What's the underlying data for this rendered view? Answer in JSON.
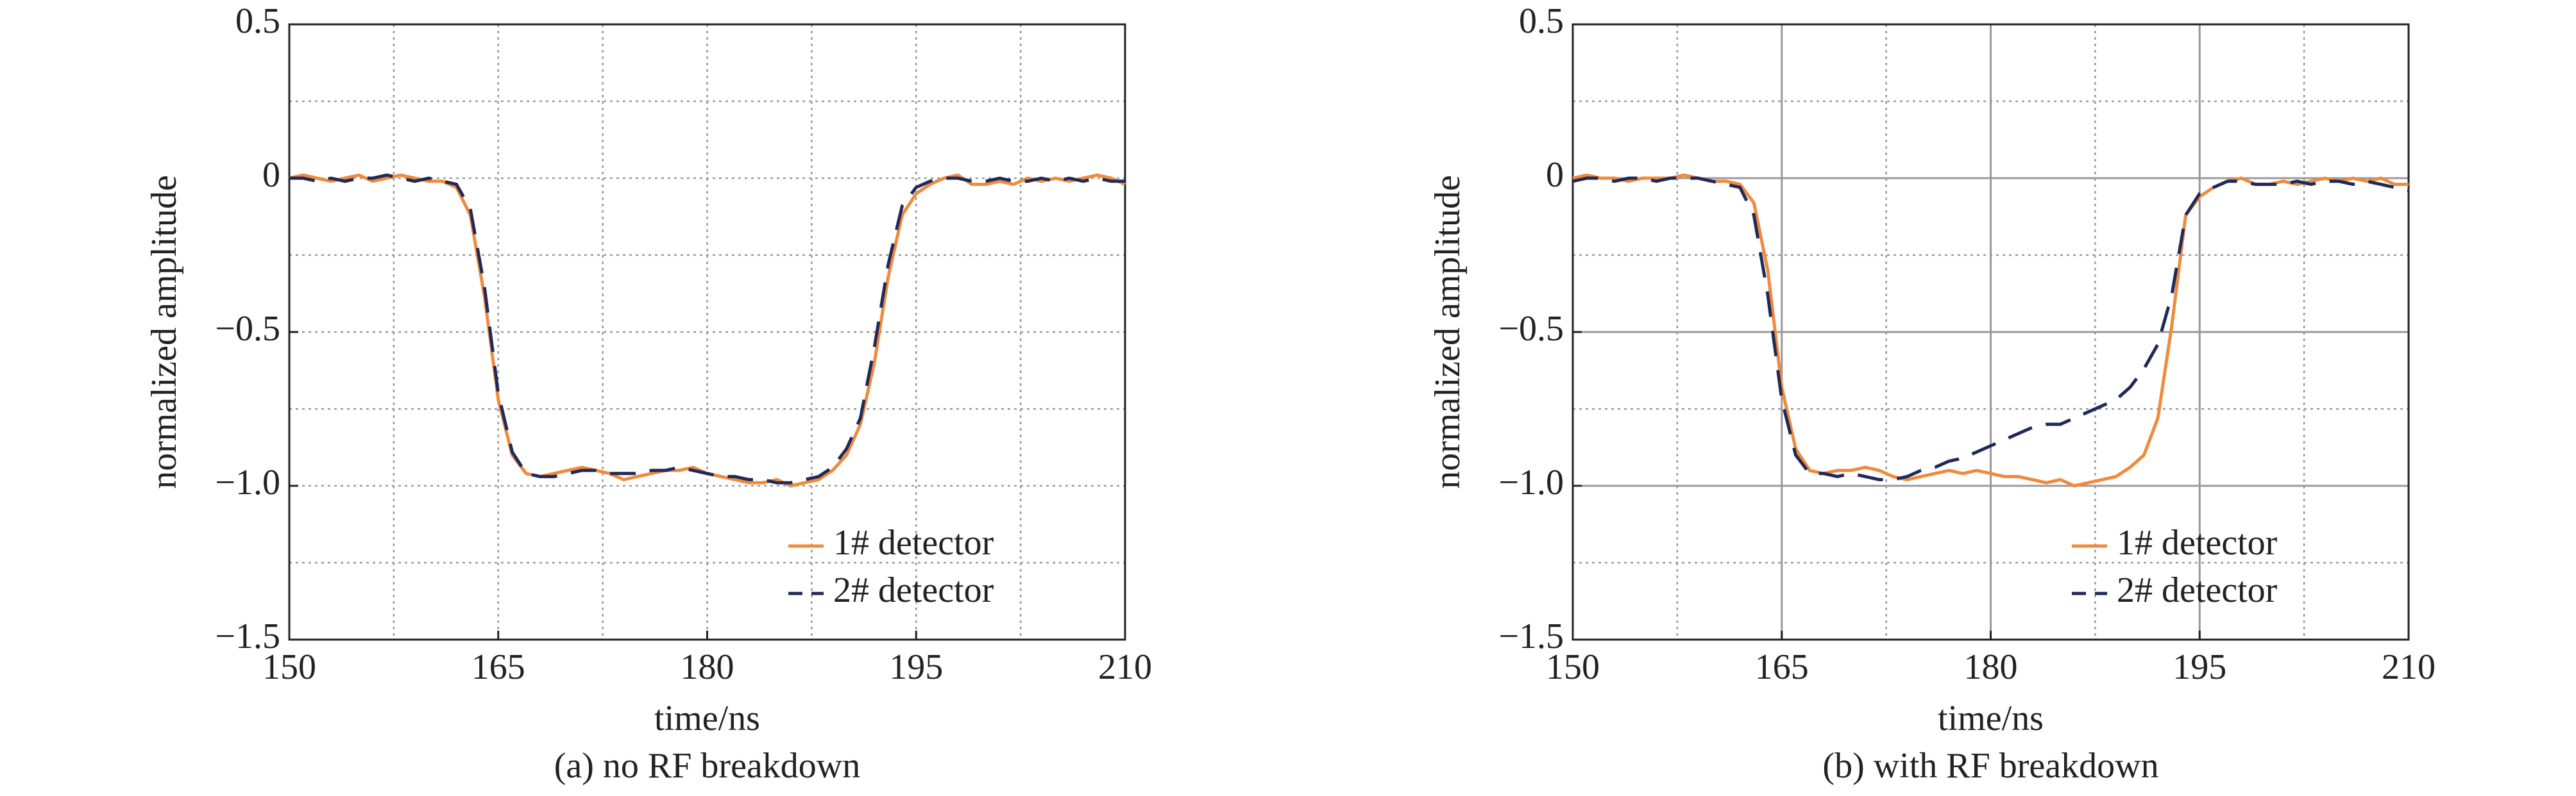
{
  "chart_data": [
    {
      "type": "line",
      "caption": "(a) no RF breakdown",
      "x_label": "time/ns",
      "y_label": "normalized amplitude",
      "x": [
        150,
        151,
        152,
        153,
        154,
        155,
        156,
        157,
        158,
        159,
        160,
        161,
        162,
        163,
        164,
        165,
        166,
        167,
        168,
        169,
        170,
        171,
        172,
        173,
        174,
        175,
        176,
        177,
        178,
        179,
        180,
        181,
        182,
        183,
        184,
        185,
        186,
        187,
        188,
        189,
        190,
        191,
        192,
        193,
        194,
        195,
        196,
        197,
        198,
        199,
        200,
        201,
        202,
        203,
        204,
        205,
        206,
        207,
        208,
        209,
        210
      ],
      "series": [
        {
          "name": "1# detector",
          "color": "#f08a3c",
          "style": "solid",
          "values": [
            0,
            0.01,
            0,
            -0.01,
            0,
            0.01,
            -0.01,
            0,
            0.01,
            0,
            -0.01,
            -0.01,
            -0.03,
            -0.12,
            -0.38,
            -0.72,
            -0.9,
            -0.96,
            -0.97,
            -0.96,
            -0.95,
            -0.94,
            -0.95,
            -0.96,
            -0.98,
            -0.97,
            -0.96,
            -0.95,
            -0.95,
            -0.94,
            -0.96,
            -0.97,
            -0.98,
            -0.99,
            -0.99,
            -0.98,
            -1.0,
            -0.99,
            -0.98,
            -0.95,
            -0.9,
            -0.8,
            -0.6,
            -0.32,
            -0.12,
            -0.05,
            -0.02,
            0,
            0.01,
            -0.02,
            -0.02,
            -0.01,
            -0.02,
            0,
            -0.01,
            0,
            -0.01,
            0,
            0.01,
            0,
            -0.02
          ]
        },
        {
          "name": "2# detector",
          "color": "#1f2a5a",
          "style": "dashed",
          "values": [
            0,
            0,
            -0.01,
            0,
            -0.01,
            0,
            0,
            0.01,
            0,
            -0.01,
            0,
            -0.01,
            -0.02,
            -0.1,
            -0.35,
            -0.7,
            -0.89,
            -0.96,
            -0.97,
            -0.97,
            -0.96,
            -0.95,
            -0.95,
            -0.96,
            -0.96,
            -0.96,
            -0.95,
            -0.95,
            -0.94,
            -0.95,
            -0.96,
            -0.97,
            -0.97,
            -0.98,
            -0.98,
            -0.99,
            -0.99,
            -0.98,
            -0.97,
            -0.94,
            -0.88,
            -0.78,
            -0.55,
            -0.28,
            -0.09,
            -0.03,
            -0.01,
            0,
            0,
            -0.01,
            -0.01,
            0,
            -0.01,
            -0.01,
            0,
            -0.01,
            0,
            -0.01,
            0,
            -0.01,
            -0.01
          ]
        }
      ],
      "xlim": [
        150,
        210
      ],
      "xticks": [
        150,
        165,
        180,
        195,
        210
      ],
      "xminor": [
        157.5,
        172.5,
        187.5,
        202.5
      ],
      "ylim": [
        -1.5,
        0.5
      ],
      "yticks": [
        {
          "value": -1.5,
          "label": "−1.5"
        },
        {
          "value": -1,
          "label": "−1.0"
        },
        {
          "value": -0.5,
          "label": "−0.5"
        },
        0,
        0.5
      ],
      "yminor": [
        -1.25,
        -0.75,
        -0.25,
        0.25
      ],
      "grid": "dotted",
      "legend": "lower right"
    },
    {
      "type": "line",
      "caption": "(b) with RF breakdown",
      "x_label": "time/ns",
      "y_label": "normalized amplitude",
      "x": [
        150,
        151,
        152,
        153,
        154,
        155,
        156,
        157,
        158,
        159,
        160,
        161,
        162,
        163,
        164,
        165,
        166,
        167,
        168,
        169,
        170,
        171,
        172,
        173,
        174,
        175,
        176,
        177,
        178,
        179,
        180,
        181,
        182,
        183,
        184,
        185,
        186,
        187,
        188,
        189,
        190,
        191,
        192,
        193,
        194,
        195,
        196,
        197,
        198,
        199,
        200,
        201,
        202,
        203,
        204,
        205,
        206,
        207,
        208,
        209,
        210
      ],
      "series": [
        {
          "name": "1# detector",
          "color": "#f08a3c",
          "style": "solid",
          "values": [
            0,
            0.01,
            0,
            0,
            -0.01,
            0,
            0,
            0,
            0.01,
            0,
            -0.01,
            -0.01,
            -0.02,
            -0.08,
            -0.3,
            -0.68,
            -0.88,
            -0.95,
            -0.96,
            -0.95,
            -0.95,
            -0.94,
            -0.95,
            -0.97,
            -0.98,
            -0.97,
            -0.96,
            -0.95,
            -0.96,
            -0.95,
            -0.96,
            -0.97,
            -0.97,
            -0.98,
            -0.99,
            -0.98,
            -1.0,
            -0.99,
            -0.98,
            -0.97,
            -0.94,
            -0.9,
            -0.78,
            -0.48,
            -0.12,
            -0.06,
            -0.03,
            -0.01,
            0,
            -0.02,
            -0.02,
            -0.01,
            -0.02,
            -0.01,
            0,
            -0.01,
            0,
            -0.01,
            0,
            -0.02,
            -0.02
          ]
        },
        {
          "name": "2# detector",
          "color": "#1f2a5a",
          "style": "dashed",
          "values": [
            -0.01,
            0,
            0,
            -0.01,
            0,
            0,
            -0.01,
            0,
            0,
            0,
            -0.01,
            -0.02,
            -0.03,
            -0.12,
            -0.38,
            -0.72,
            -0.9,
            -0.96,
            -0.96,
            -0.97,
            -0.96,
            -0.97,
            -0.98,
            -0.98,
            -0.97,
            -0.95,
            -0.94,
            -0.92,
            -0.91,
            -0.89,
            -0.87,
            -0.85,
            -0.83,
            -0.81,
            -0.8,
            -0.8,
            -0.78,
            -0.76,
            -0.74,
            -0.72,
            -0.68,
            -0.62,
            -0.54,
            -0.38,
            -0.12,
            -0.05,
            -0.03,
            -0.01,
            -0.01,
            -0.02,
            -0.02,
            -0.02,
            -0.01,
            -0.02,
            -0.01,
            -0.01,
            -0.02,
            -0.01,
            -0.02,
            -0.03,
            -0.04
          ]
        }
      ],
      "xlim": [
        150,
        210
      ],
      "xticks": [
        150,
        165,
        180,
        195,
        210
      ],
      "xminor": [
        157.5,
        172.5,
        187.5,
        202.5
      ],
      "ylim": [
        -1.5,
        0.5
      ],
      "yticks": [
        {
          "value": -1.5,
          "label": "−1.5"
        },
        {
          "value": -1,
          "label": "−1.0"
        },
        {
          "value": -0.5,
          "label": "−0.5"
        },
        0,
        0.5
      ],
      "yminor": [
        -1.25,
        -0.75,
        -0.25,
        0.25
      ],
      "grid": "solid",
      "legend": "lower right"
    }
  ]
}
